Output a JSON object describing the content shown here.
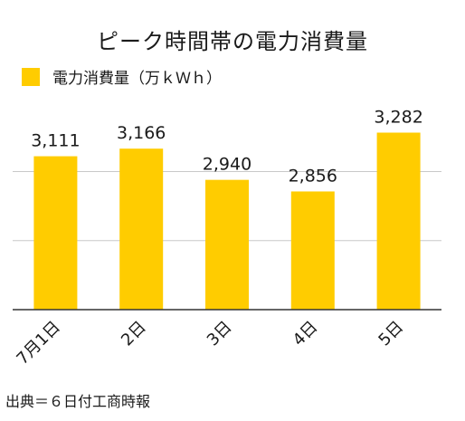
{
  "chart_data": {
    "type": "bar",
    "title": "ピーク時間帯の電力消費量",
    "categories": [
      "7月1日",
      "2日",
      "3日",
      "4日",
      "5日"
    ],
    "series": [
      {
        "name": "電力消費量（万ｋＷｈ）",
        "values": [
          3111,
          3166,
          2940,
          2856,
          3282
        ]
      }
    ],
    "value_labels": [
      "3,111",
      "3,166",
      "2,940",
      "2,856",
      "3,282"
    ],
    "ylim": [
      2000,
      3600
    ],
    "grid": true,
    "legend_position": "top-left",
    "bar_color": "#FFCC00",
    "source": "出典＝６日付工商時報"
  }
}
